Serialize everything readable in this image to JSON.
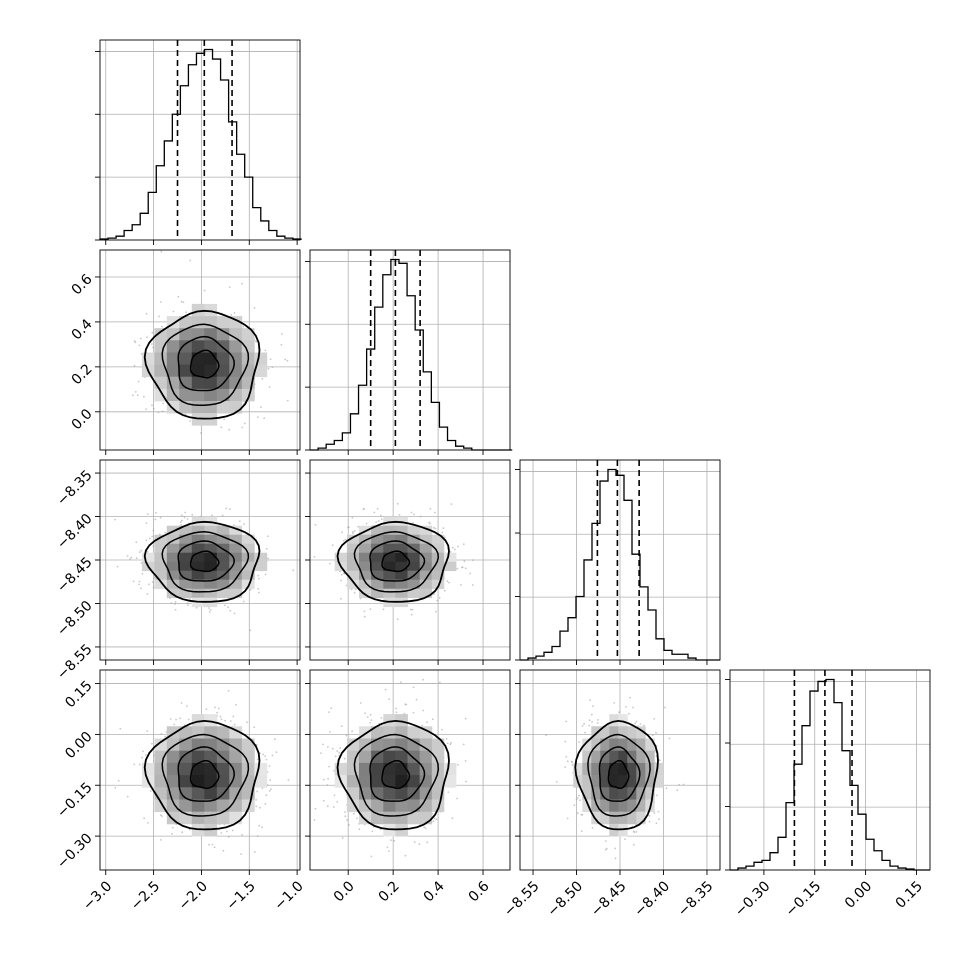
{
  "chart_data": {
    "type": "corner",
    "title": "",
    "parameters": [
      "",
      "",
      "",
      ""
    ],
    "grid": true,
    "ranges": [
      [
        -3.06,
        -0.97
      ],
      [
        -0.17,
        0.72
      ],
      [
        -8.565,
        -8.335
      ],
      [
        -0.4,
        0.19
      ]
    ],
    "ticks": [
      [
        -3.0,
        -2.5,
        -2.0,
        -1.5,
        -1.0
      ],
      [
        0.0,
        0.2,
        0.4,
        0.6
      ],
      [
        -8.55,
        -8.5,
        -8.45,
        -8.4,
        -8.35
      ],
      [
        -0.3,
        -0.15,
        0.0,
        0.15
      ]
    ],
    "tick_labels": {
      "x": [
        [
          "−3.0",
          "−2.5",
          "−2.0",
          "−1.5",
          "−1.0"
        ],
        [
          "0.0",
          "0.2",
          "0.4",
          "0.6"
        ],
        [
          "−8.55",
          "−8.50",
          "−8.45",
          "−8.40",
          "−8.35"
        ],
        [
          "−0.30",
          "−0.15",
          "0.00",
          "0.15"
        ]
      ],
      "y": [
        null,
        [
          "0.0",
          "0.2",
          "0.4",
          "0.6"
        ],
        [
          "−8.55",
          "−8.50",
          "−8.45",
          "−8.40",
          "−8.35"
        ],
        [
          "−0.30",
          "−0.15",
          "0.00",
          "0.15"
        ]
      ]
    },
    "quantiles": [
      [
        -2.25,
        -1.97,
        -1.68
      ],
      [
        0.1,
        0.21,
        0.32
      ],
      [
        -8.476,
        -8.453,
        -8.428
      ],
      [
        -0.21,
        -0.12,
        -0.04
      ]
    ],
    "marginals": [
      {
        "edges": [
          -3.06,
          -2.976,
          -2.892,
          -2.808,
          -2.724,
          -2.64,
          -2.556,
          -2.472,
          -2.388,
          -2.304,
          -2.22,
          -2.136,
          -2.052,
          -1.968,
          -1.884,
          -1.8,
          -1.716,
          -1.632,
          -1.548,
          -1.464,
          -1.38,
          -1.296,
          -1.212,
          -1.128,
          -1.044,
          -0.96
        ],
        "counts": [
          0.005,
          0.01,
          0.02,
          0.05,
          0.08,
          0.14,
          0.25,
          0.39,
          0.52,
          0.66,
          0.81,
          0.92,
          0.98,
          1.0,
          0.95,
          0.84,
          0.62,
          0.45,
          0.33,
          0.17,
          0.1,
          0.05,
          0.02,
          0.01,
          0.005
        ]
      },
      {
        "edges": [
          -0.17,
          -0.134,
          -0.098,
          -0.062,
          -0.026,
          0.01,
          0.046,
          0.082,
          0.118,
          0.154,
          0.19,
          0.226,
          0.262,
          0.298,
          0.334,
          0.37,
          0.406,
          0.442,
          0.478,
          0.514,
          0.55,
          0.586,
          0.622,
          0.658,
          0.694,
          0.73
        ],
        "counts": [
          0.0,
          0.01,
          0.03,
          0.05,
          0.09,
          0.19,
          0.34,
          0.53,
          0.75,
          0.92,
          1.0,
          0.98,
          0.81,
          0.63,
          0.41,
          0.25,
          0.12,
          0.05,
          0.02,
          0.01,
          0.0,
          0.0,
          0.0,
          0.0,
          0.0
        ]
      },
      {
        "edges": [
          -8.565,
          -8.5558,
          -8.5466,
          -8.5374,
          -8.5282,
          -8.519,
          -8.5098,
          -8.5006,
          -8.4914,
          -8.4822,
          -8.473,
          -8.4638,
          -8.4546,
          -8.4454,
          -8.4362,
          -8.427,
          -8.4178,
          -8.4086,
          -8.3994,
          -8.3902,
          -8.381,
          -8.3718,
          -8.3626,
          -8.3534,
          -8.3442,
          -8.335
        ],
        "counts": [
          0.0,
          0.01,
          0.02,
          0.04,
          0.07,
          0.15,
          0.22,
          0.33,
          0.52,
          0.71,
          0.93,
          0.99,
          0.96,
          0.83,
          0.55,
          0.38,
          0.26,
          0.11,
          0.05,
          0.03,
          0.03,
          0.01,
          0.0,
          0.0,
          0.0
        ]
      },
      {
        "edges": [
          -0.4,
          -0.3764,
          -0.3528,
          -0.3292,
          -0.3056,
          -0.282,
          -0.2584,
          -0.2348,
          -0.2112,
          -0.1876,
          -0.164,
          -0.1404,
          -0.1168,
          -0.0932,
          -0.0696,
          -0.046,
          -0.0224,
          0.0012,
          0.0248,
          0.0484,
          0.072,
          0.0956,
          0.1192,
          0.1428,
          0.1664,
          0.19
        ],
        "counts": [
          0.0,
          0.01,
          0.02,
          0.04,
          0.05,
          0.09,
          0.17,
          0.35,
          0.55,
          0.75,
          0.93,
          0.98,
          0.99,
          0.87,
          0.62,
          0.44,
          0.29,
          0.16,
          0.1,
          0.05,
          0.02,
          0.01,
          0.005,
          0.0,
          0.0
        ]
      }
    ],
    "joint": [
      {
        "x": 0,
        "y": 1,
        "mean": [
          -1.97,
          0.21
        ],
        "sd": [
          0.29,
          0.12
        ],
        "rho": 0.0
      },
      {
        "x": 0,
        "y": 2,
        "mean": [
          -1.97,
          -8.452
        ],
        "sd": [
          0.29,
          0.023
        ],
        "rho": 0.0
      },
      {
        "x": 1,
        "y": 2,
        "mean": [
          0.21,
          -8.452
        ],
        "sd": [
          0.12,
          0.023
        ],
        "rho": 0.0
      },
      {
        "x": 0,
        "y": 3,
        "mean": [
          -1.97,
          -0.12
        ],
        "sd": [
          0.29,
          0.08
        ],
        "rho": 0.0
      },
      {
        "x": 1,
        "y": 3,
        "mean": [
          0.21,
          -0.12
        ],
        "sd": [
          0.12,
          0.08
        ],
        "rho": 0.0
      },
      {
        "x": 2,
        "y": 3,
        "mean": [
          -8.452,
          -0.12
        ],
        "sd": [
          0.023,
          0.08
        ],
        "rho": 0.0
      }
    ],
    "contour_levels_sigma": [
      0.5,
      1.0,
      1.5,
      2.0
    ]
  }
}
